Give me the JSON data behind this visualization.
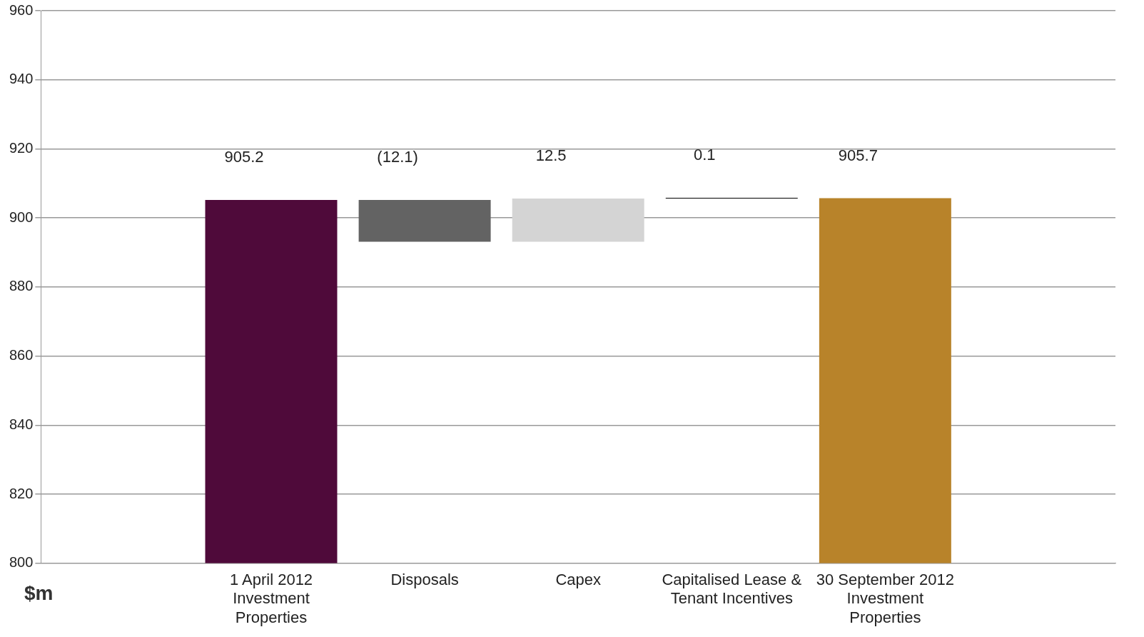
{
  "chart_data": {
    "type": "bar",
    "ylabel": "$m",
    "categories": [
      null,
      "1 April 2012 Investment Properties",
      "Disposals",
      "Capex",
      "Capitalised Lease & Tenant Incentives",
      "30 September 2012 Investment Properties",
      null
    ],
    "values": [
      null,
      105.2,
      -12.1,
      12.5,
      0.1,
      105.7,
      null
    ],
    "base": [
      null,
      800,
      905.2,
      893.1,
      905.6,
      800,
      null
    ],
    "colors": [
      "#000000",
      "#4f0a3a",
      "#636363",
      "#d4d4d4",
      "#000000",
      "#b8832a",
      "#000000"
    ],
    "value_labels": [
      null,
      "905.2",
      "(12.1)",
      "12.5",
      "0.1",
      "905.7",
      null
    ],
    "ylim": [
      800,
      960
    ],
    "yticks": [
      800,
      820,
      840,
      860,
      880,
      900,
      920,
      940,
      960
    ],
    "grid": "y",
    "legend": false
  }
}
